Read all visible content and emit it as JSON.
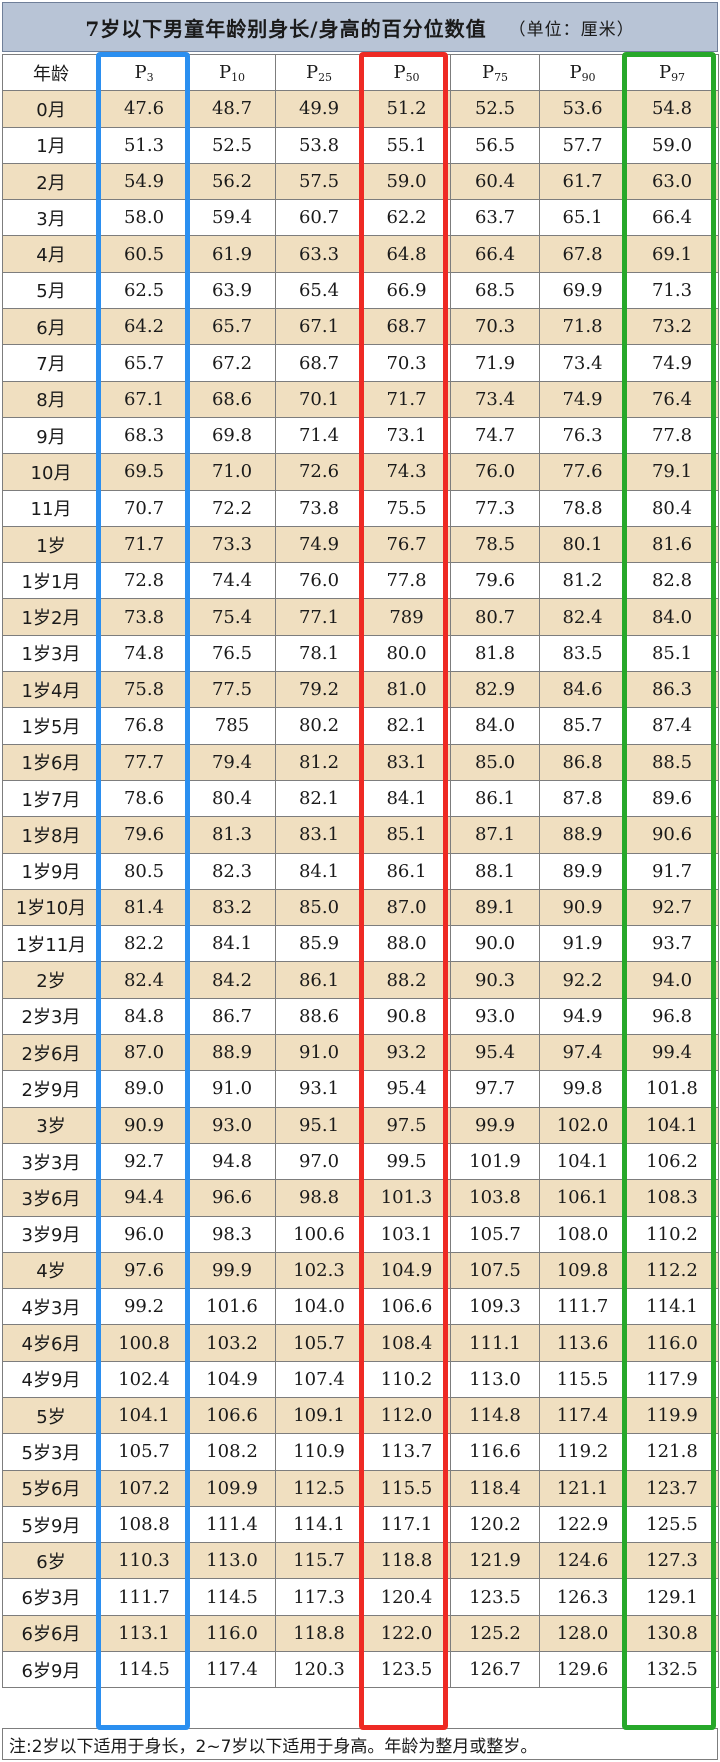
{
  "title": "7岁以下男童年龄别身长/身高的百分位数值",
  "unit": "（单位：厘米）",
  "columns": {
    "age": "年龄",
    "percentiles": [
      {
        "p": "P",
        "n": "3"
      },
      {
        "p": "P",
        "n": "10"
      },
      {
        "p": "P",
        "n": "25"
      },
      {
        "p": "P",
        "n": "50"
      },
      {
        "p": "P",
        "n": "75"
      },
      {
        "p": "P",
        "n": "90"
      },
      {
        "p": "P",
        "n": "97"
      }
    ]
  },
  "rows": [
    {
      "age": "0月",
      "values": [
        "47.6",
        "48.7",
        "49.9",
        "51.2",
        "52.5",
        "53.6",
        "54.8"
      ]
    },
    {
      "age": "1月",
      "values": [
        "51.3",
        "52.5",
        "53.8",
        "55.1",
        "56.5",
        "57.7",
        "59.0"
      ]
    },
    {
      "age": "2月",
      "values": [
        "54.9",
        "56.2",
        "57.5",
        "59.0",
        "60.4",
        "61.7",
        "63.0"
      ]
    },
    {
      "age": "3月",
      "values": [
        "58.0",
        "59.4",
        "60.7",
        "62.2",
        "63.7",
        "65.1",
        "66.4"
      ]
    },
    {
      "age": "4月",
      "values": [
        "60.5",
        "61.9",
        "63.3",
        "64.8",
        "66.4",
        "67.8",
        "69.1"
      ]
    },
    {
      "age": "5月",
      "values": [
        "62.5",
        "63.9",
        "65.4",
        "66.9",
        "68.5",
        "69.9",
        "71.3"
      ]
    },
    {
      "age": "6月",
      "values": [
        "64.2",
        "65.7",
        "67.1",
        "68.7",
        "70.3",
        "71.8",
        "73.2"
      ]
    },
    {
      "age": "7月",
      "values": [
        "65.7",
        "67.2",
        "68.7",
        "70.3",
        "71.9",
        "73.4",
        "74.9"
      ]
    },
    {
      "age": "8月",
      "values": [
        "67.1",
        "68.6",
        "70.1",
        "71.7",
        "73.4",
        "74.9",
        "76.4"
      ]
    },
    {
      "age": "9月",
      "values": [
        "68.3",
        "69.8",
        "71.4",
        "73.1",
        "74.7",
        "76.3",
        "77.8"
      ]
    },
    {
      "age": "10月",
      "values": [
        "69.5",
        "71.0",
        "72.6",
        "74.3",
        "76.0",
        "77.6",
        "79.1"
      ]
    },
    {
      "age": "11月",
      "values": [
        "70.7",
        "72.2",
        "73.8",
        "75.5",
        "77.3",
        "78.8",
        "80.4"
      ]
    },
    {
      "age": "1岁",
      "values": [
        "71.7",
        "73.3",
        "74.9",
        "76.7",
        "78.5",
        "80.1",
        "81.6"
      ]
    },
    {
      "age": "1岁1月",
      "values": [
        "72.8",
        "74.4",
        "76.0",
        "77.8",
        "79.6",
        "81.2",
        "82.8"
      ]
    },
    {
      "age": "1岁2月",
      "values": [
        "73.8",
        "75.4",
        "77.1",
        "789",
        "80.7",
        "82.4",
        "84.0"
      ]
    },
    {
      "age": "1岁3月",
      "values": [
        "74.8",
        "76.5",
        "78.1",
        "80.0",
        "81.8",
        "83.5",
        "85.1"
      ]
    },
    {
      "age": "1岁4月",
      "values": [
        "75.8",
        "77.5",
        "79.2",
        "81.0",
        "82.9",
        "84.6",
        "86.3"
      ]
    },
    {
      "age": "1岁5月",
      "values": [
        "76.8",
        "785",
        "80.2",
        "82.1",
        "84.0",
        "85.7",
        "87.4"
      ]
    },
    {
      "age": "1岁6月",
      "values": [
        "77.7",
        "79.4",
        "81.2",
        "83.1",
        "85.0",
        "86.8",
        "88.5"
      ]
    },
    {
      "age": "1岁7月",
      "values": [
        "78.6",
        "80.4",
        "82.1",
        "84.1",
        "86.1",
        "87.8",
        "89.6"
      ]
    },
    {
      "age": "1岁8月",
      "values": [
        "79.6",
        "81.3",
        "83.1",
        "85.1",
        "87.1",
        "88.9",
        "90.6"
      ]
    },
    {
      "age": "1岁9月",
      "values": [
        "80.5",
        "82.3",
        "84.1",
        "86.1",
        "88.1",
        "89.9",
        "91.7"
      ]
    },
    {
      "age": "1岁10月",
      "values": [
        "81.4",
        "83.2",
        "85.0",
        "87.0",
        "89.1",
        "90.9",
        "92.7"
      ]
    },
    {
      "age": "1岁11月",
      "values": [
        "82.2",
        "84.1",
        "85.9",
        "88.0",
        "90.0",
        "91.9",
        "93.7"
      ]
    },
    {
      "age": "2岁",
      "values": [
        "82.4",
        "84.2",
        "86.1",
        "88.2",
        "90.3",
        "92.2",
        "94.0"
      ]
    },
    {
      "age": "2岁3月",
      "values": [
        "84.8",
        "86.7",
        "88.6",
        "90.8",
        "93.0",
        "94.9",
        "96.8"
      ]
    },
    {
      "age": "2岁6月",
      "values": [
        "87.0",
        "88.9",
        "91.0",
        "93.2",
        "95.4",
        "97.4",
        "99.4"
      ]
    },
    {
      "age": "2岁9月",
      "values": [
        "89.0",
        "91.0",
        "93.1",
        "95.4",
        "97.7",
        "99.8",
        "101.8"
      ]
    },
    {
      "age": "3岁",
      "values": [
        "90.9",
        "93.0",
        "95.1",
        "97.5",
        "99.9",
        "102.0",
        "104.1"
      ]
    },
    {
      "age": "3岁3月",
      "values": [
        "92.7",
        "94.8",
        "97.0",
        "99.5",
        "101.9",
        "104.1",
        "106.2"
      ]
    },
    {
      "age": "3岁6月",
      "values": [
        "94.4",
        "96.6",
        "98.8",
        "101.3",
        "103.8",
        "106.1",
        "108.3"
      ]
    },
    {
      "age": "3岁9月",
      "values": [
        "96.0",
        "98.3",
        "100.6",
        "103.1",
        "105.7",
        "108.0",
        "110.2"
      ]
    },
    {
      "age": "4岁",
      "values": [
        "97.6",
        "99.9",
        "102.3",
        "104.9",
        "107.5",
        "109.8",
        "112.2"
      ]
    },
    {
      "age": "4岁3月",
      "values": [
        "99.2",
        "101.6",
        "104.0",
        "106.6",
        "109.3",
        "111.7",
        "114.1"
      ]
    },
    {
      "age": "4岁6月",
      "values": [
        "100.8",
        "103.2",
        "105.7",
        "108.4",
        "111.1",
        "113.6",
        "116.0"
      ]
    },
    {
      "age": "4岁9月",
      "values": [
        "102.4",
        "104.9",
        "107.4",
        "110.2",
        "113.0",
        "115.5",
        "117.9"
      ]
    },
    {
      "age": "5岁",
      "values": [
        "104.1",
        "106.6",
        "109.1",
        "112.0",
        "114.8",
        "117.4",
        "119.9"
      ]
    },
    {
      "age": "5岁3月",
      "values": [
        "105.7",
        "108.2",
        "110.9",
        "113.7",
        "116.6",
        "119.2",
        "121.8"
      ]
    },
    {
      "age": "5岁6月",
      "values": [
        "107.2",
        "109.9",
        "112.5",
        "115.5",
        "118.4",
        "121.1",
        "123.7"
      ]
    },
    {
      "age": "5岁9月",
      "values": [
        "108.8",
        "111.4",
        "114.1",
        "117.1",
        "120.2",
        "122.9",
        "125.5"
      ]
    },
    {
      "age": "6岁",
      "values": [
        "110.3",
        "113.0",
        "115.7",
        "118.8",
        "121.9",
        "124.6",
        "127.3"
      ]
    },
    {
      "age": "6岁3月",
      "values": [
        "111.7",
        "114.5",
        "117.3",
        "120.4",
        "123.5",
        "126.3",
        "129.1"
      ]
    },
    {
      "age": "6岁6月",
      "values": [
        "113.1",
        "116.0",
        "118.8",
        "122.0",
        "125.2",
        "128.0",
        "130.8"
      ]
    },
    {
      "age": "6岁9月",
      "values": [
        "114.5",
        "117.4",
        "120.3",
        "123.5",
        "126.7",
        "129.6",
        "132.5"
      ]
    }
  ],
  "note": "注:2岁以下适用于身长，2~7岁以下适用于身高。年龄为整月或整岁。",
  "colors": {
    "header_bg": "#b8c4d6",
    "stripe_bg": "#f0dfc0",
    "highlight_p3": "#2b8ff0",
    "highlight_p50": "#ee2a24",
    "highlight_p97": "#27a82a"
  }
}
